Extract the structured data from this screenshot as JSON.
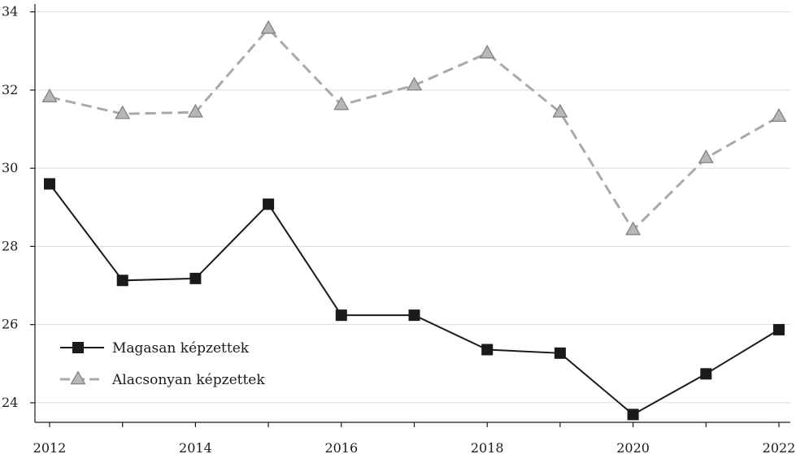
{
  "chart_data": {
    "type": "line",
    "x": [
      2012,
      2013,
      2014,
      2015,
      2016,
      2017,
      2018,
      2019,
      2020,
      2021,
      2022
    ],
    "x_tick_labels": [
      "2012",
      "2014",
      "2016",
      "2018",
      "2020",
      "2022"
    ],
    "y_tick_labels": [
      "24",
      "26",
      "28",
      "30",
      "32",
      "34"
    ],
    "ylim": [
      23.5,
      34.2
    ],
    "grid": "horizontal",
    "legend_position": "bottom-left",
    "series": [
      {
        "name": "Magasan képzettek",
        "color": "#1a1a1a",
        "style": "solid",
        "marker": "square",
        "values": [
          29.6,
          27.13,
          27.18,
          29.08,
          26.24,
          26.24,
          25.36,
          25.27,
          23.7,
          24.74,
          25.87
        ]
      },
      {
        "name": "Alacsonyan képzettek",
        "color": "#a9a9a9",
        "style": "dashed",
        "marker": "triangle",
        "values": [
          31.82,
          31.39,
          31.43,
          33.57,
          31.62,
          32.12,
          32.94,
          31.43,
          28.42,
          30.26,
          31.32
        ]
      }
    ]
  }
}
